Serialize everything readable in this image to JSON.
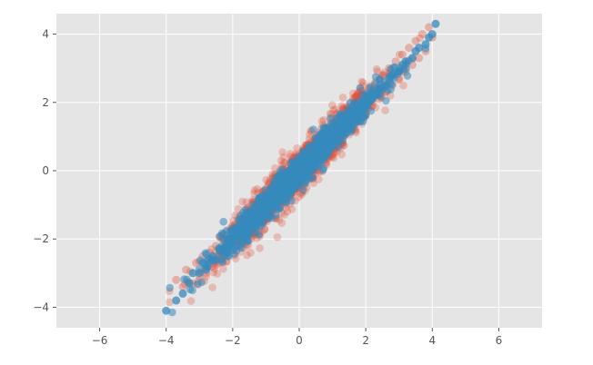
{
  "chart_data": {
    "type": "scatter",
    "title": "",
    "xlabel": "",
    "ylabel": "",
    "xlim": [
      -7.3,
      7.3
    ],
    "ylim": [
      -4.6,
      4.6
    ],
    "xticks": [
      -6,
      -4,
      -2,
      0,
      2,
      4,
      6
    ],
    "yticks": [
      -4,
      -2,
      0,
      2,
      4
    ],
    "xtick_labels": [
      "−6",
      "−4",
      "−2",
      "0",
      "2",
      "4",
      "6"
    ],
    "ytick_labels": [
      "−4",
      "−2",
      "0",
      "2",
      "4"
    ],
    "grid": true,
    "legend": "none",
    "style": "ggplot",
    "background_color": "#E5E5E5",
    "grid_color": "#FFFFFF",
    "series": [
      {
        "color": "#E24A33",
        "opacity": 0.35,
        "description_of_values": "dense elongated cloud along y≈x, slightly wider than the blue cloud",
        "x": [
          -3.7,
          -3.5,
          -3.4,
          -3.2,
          -3.1,
          -3.0,
          -2.9,
          -2.8,
          -2.7,
          -2.6,
          -2.5,
          -2.4,
          -2.3,
          -2.2,
          -2.1,
          -2.0,
          -1.9,
          -1.8,
          -1.7,
          -1.6,
          -1.5,
          -1.4,
          -1.3,
          -1.2,
          -1.1,
          -1.0,
          -0.9,
          -0.8,
          -0.7,
          -0.6,
          -0.5,
          -0.4,
          -0.3,
          -0.2,
          -0.1,
          0.0,
          0.1,
          0.2,
          0.3,
          0.4,
          0.5,
          0.6,
          0.7,
          0.8,
          0.9,
          1.0,
          1.1,
          1.2,
          1.3,
          1.4,
          1.5,
          1.6,
          1.7,
          1.8,
          1.9,
          2.0,
          2.1,
          2.2,
          2.3,
          2.4,
          2.5,
          2.6,
          2.7,
          2.8,
          2.9,
          3.0,
          3.1,
          3.2,
          3.3,
          3.4,
          3.5,
          3.6,
          3.7,
          3.8,
          3.9,
          4.0
        ],
        "y": [
          -3.2,
          -3.4,
          -2.9,
          -3.3,
          -2.7,
          -3.1,
          -2.5,
          -3.0,
          -2.4,
          -2.8,
          -2.2,
          -2.7,
          -2.0,
          -2.5,
          -1.8,
          -2.3,
          -1.6,
          -2.1,
          -1.4,
          -1.9,
          -1.2,
          -1.7,
          -1.0,
          -1.5,
          -0.8,
          -1.3,
          -0.6,
          -1.1,
          -0.4,
          -0.9,
          -0.2,
          -0.7,
          0.0,
          -0.5,
          0.2,
          -0.3,
          0.4,
          -0.1,
          0.6,
          0.1,
          0.8,
          0.3,
          1.0,
          0.5,
          1.2,
          0.7,
          1.4,
          0.9,
          1.6,
          1.1,
          1.8,
          1.3,
          2.0,
          1.5,
          2.2,
          1.7,
          2.4,
          1.9,
          2.6,
          2.1,
          2.8,
          2.3,
          3.0,
          2.5,
          3.2,
          2.7,
          3.4,
          2.9,
          3.6,
          3.1,
          3.8,
          3.3,
          4.0,
          3.5,
          4.2,
          3.9
        ]
      },
      {
        "color": "#348ABD",
        "opacity": 0.75,
        "description_of_values": "dense elongated cloud along y≈x, slightly tighter than the red cloud",
        "x": [
          -4.0,
          -3.7,
          -3.5,
          -3.3,
          -3.2,
          -3.0,
          -2.9,
          -2.8,
          -2.6,
          -2.5,
          -2.4,
          -2.2,
          -2.1,
          -2.0,
          -1.8,
          -1.7,
          -1.6,
          -1.4,
          -1.3,
          -1.2,
          -1.0,
          -0.9,
          -0.8,
          -0.6,
          -0.5,
          -0.4,
          -0.2,
          -0.1,
          0.0,
          0.2,
          0.3,
          0.4,
          0.6,
          0.7,
          0.8,
          1.0,
          1.1,
          1.2,
          1.4,
          1.5,
          1.6,
          1.8,
          1.9,
          2.0,
          2.2,
          2.3,
          2.4,
          2.6,
          2.7,
          2.8,
          3.0,
          3.1,
          3.2,
          3.4,
          3.5,
          3.6,
          3.8,
          3.9,
          4.0,
          4.1
        ],
        "y": [
          -4.1,
          -3.8,
          -3.6,
          -3.3,
          -3.0,
          -3.0,
          -2.7,
          -2.9,
          -2.5,
          -2.6,
          -2.3,
          -2.2,
          -2.0,
          -2.1,
          -1.8,
          -1.7,
          -1.5,
          -1.4,
          -1.3,
          -1.1,
          -1.0,
          -0.8,
          -0.9,
          -0.6,
          -0.4,
          -0.5,
          -0.2,
          0.0,
          -0.1,
          0.2,
          0.3,
          0.4,
          0.6,
          0.6,
          0.8,
          1.0,
          1.0,
          1.2,
          1.3,
          1.5,
          1.6,
          1.7,
          1.9,
          2.0,
          2.1,
          2.3,
          2.4,
          2.5,
          2.7,
          2.8,
          2.9,
          3.1,
          3.2,
          3.3,
          3.5,
          3.6,
          3.7,
          3.9,
          4.0,
          4.3
        ]
      }
    ]
  }
}
